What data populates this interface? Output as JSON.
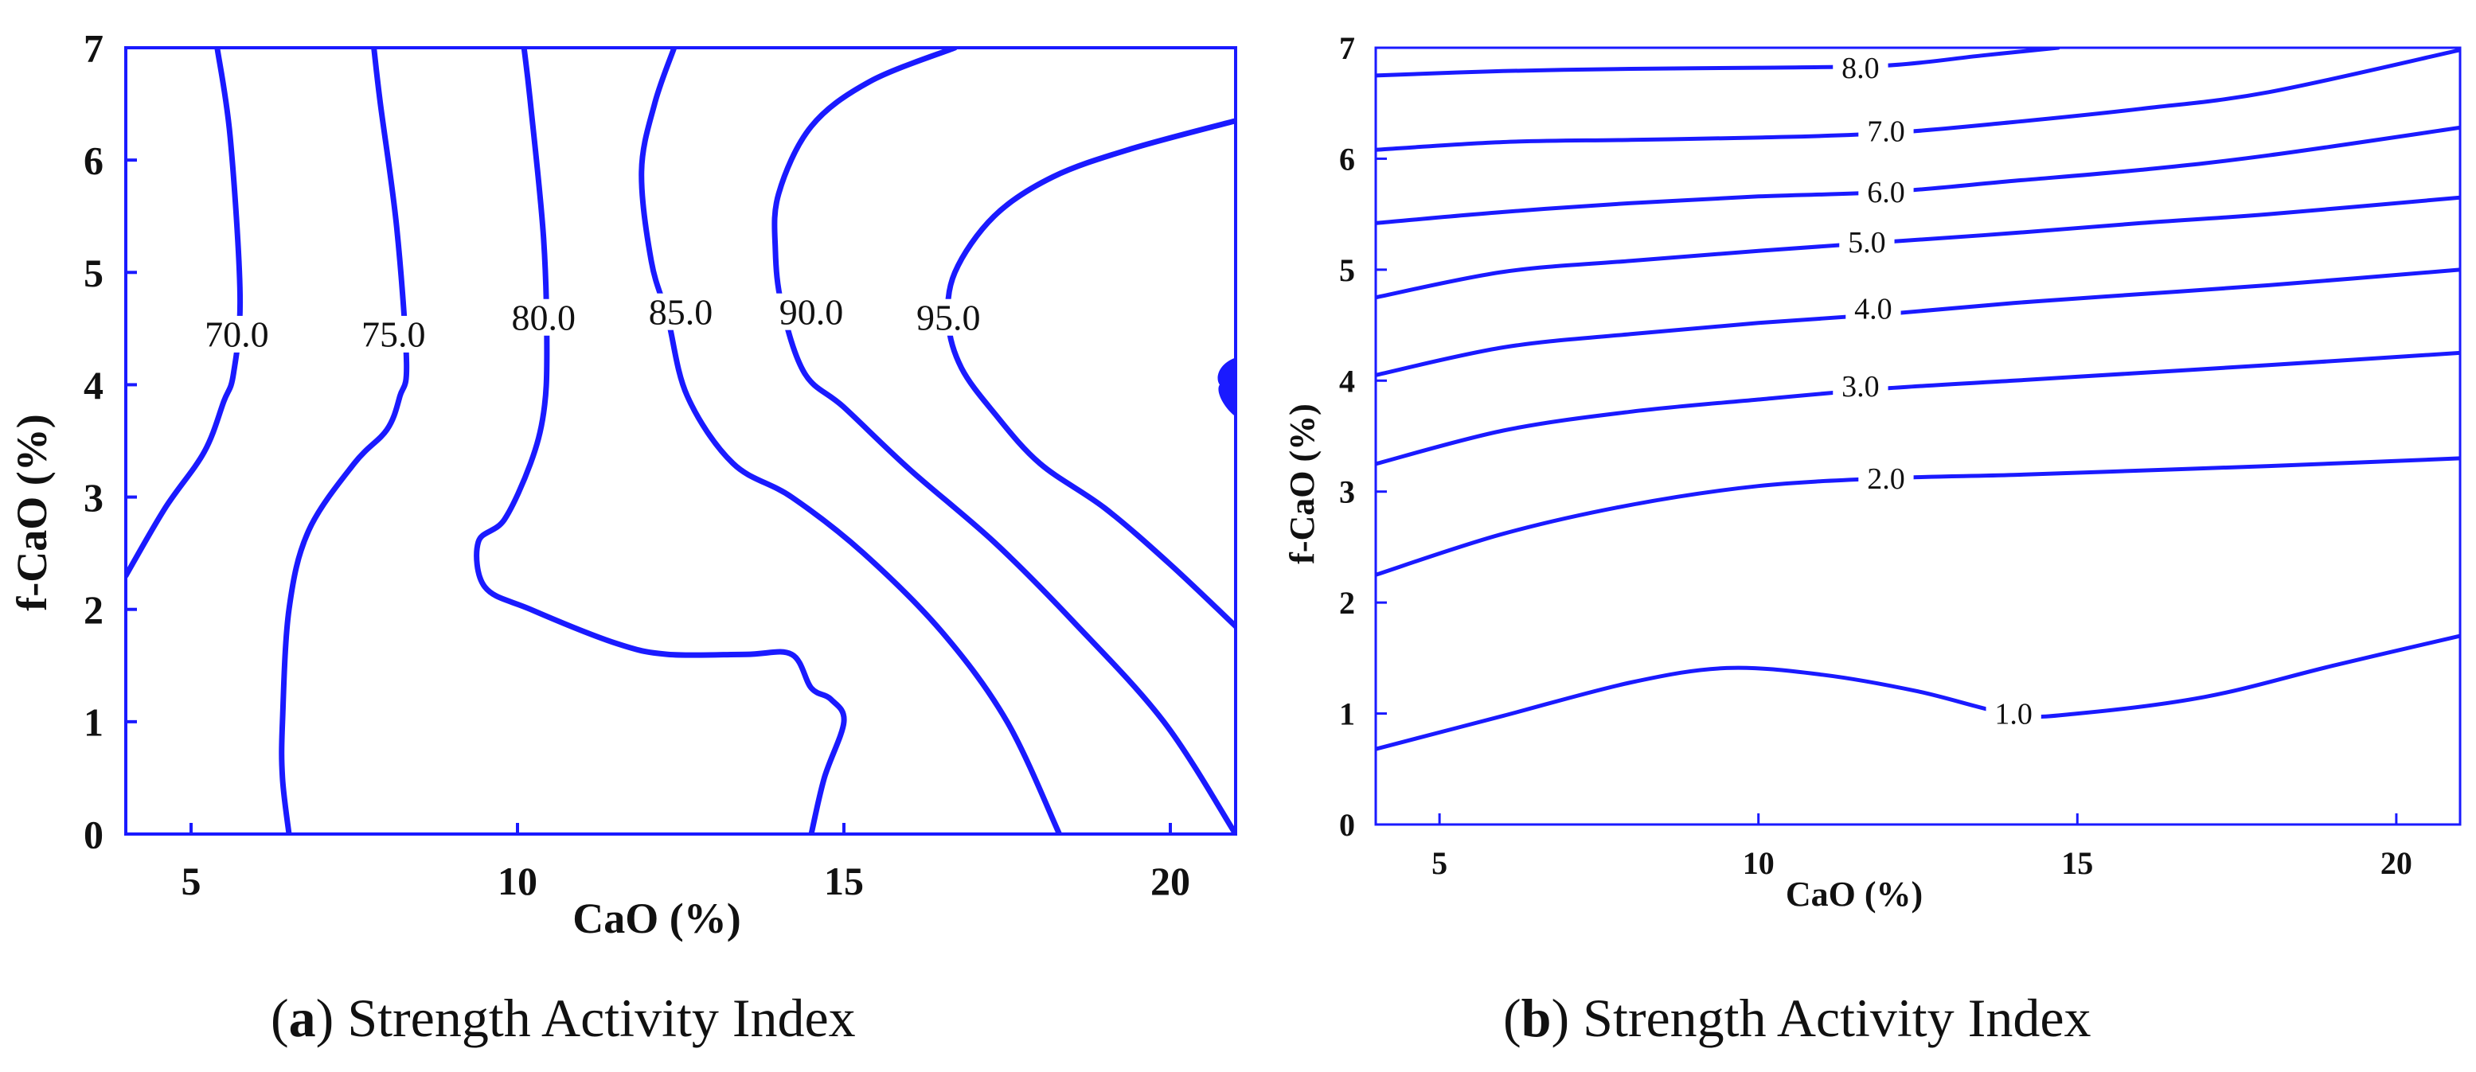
{
  "colors": {
    "line": "#1a1aff",
    "axis": "#1a1aff",
    "text": "#111111"
  },
  "chart_data": [
    {
      "type": "contour",
      "panel": "a",
      "caption_letter": "a",
      "caption_text": "Strength Activity Index",
      "xlabel": "CaO (%)",
      "ylabel": "f-CaO (%)",
      "xlim": [
        4,
        21
      ],
      "ylim": [
        0,
        7
      ],
      "xticks": [
        5,
        10,
        15,
        20
      ],
      "yticks": [
        0,
        1,
        2,
        3,
        4,
        5,
        6,
        7
      ],
      "contours": [
        {
          "label": "70.0",
          "level": 70,
          "label_at": [
            5.7,
            4.45
          ],
          "points": [
            [
              4,
              2.3
            ],
            [
              4.6,
              2.9
            ],
            [
              5.2,
              3.4
            ],
            [
              5.5,
              3.85
            ],
            [
              5.65,
              4.1
            ],
            [
              5.75,
              4.8
            ],
            [
              5.6,
              6.2
            ],
            [
              5.4,
              7
            ]
          ]
        },
        {
          "label": "75.0",
          "level": 75,
          "label_at": [
            8.1,
            4.45
          ],
          "points": [
            [
              6.5,
              0
            ],
            [
              6.4,
              0.5
            ],
            [
              6.4,
              1.0
            ],
            [
              6.5,
              2.0
            ],
            [
              6.8,
              2.7
            ],
            [
              7.5,
              3.3
            ],
            [
              8.0,
              3.6
            ],
            [
              8.2,
              3.9
            ],
            [
              8.3,
              4.2
            ],
            [
              8.15,
              5.4
            ],
            [
              7.9,
              6.5
            ],
            [
              7.8,
              7
            ]
          ]
        },
        {
          "label": "80.0",
          "level": 80,
          "label_at": [
            10.4,
            4.6
          ],
          "points": [
            [
              14.5,
              0
            ],
            [
              14.7,
              0.5
            ],
            [
              15.0,
              1.0
            ],
            [
              14.8,
              1.2
            ],
            [
              14.5,
              1.3
            ],
            [
              14.2,
              1.6
            ],
            [
              13.5,
              1.6
            ],
            [
              12.3,
              1.6
            ],
            [
              11.5,
              1.7
            ],
            [
              10.2,
              2.0
            ],
            [
              9.5,
              2.2
            ],
            [
              9.4,
              2.6
            ],
            [
              9.8,
              2.8
            ],
            [
              10.2,
              3.3
            ],
            [
              10.4,
              3.75
            ],
            [
              10.45,
              4.3
            ],
            [
              10.4,
              5.3
            ],
            [
              10.2,
              6.5
            ],
            [
              10.1,
              7
            ]
          ]
        },
        {
          "label": "85.0",
          "level": 85,
          "label_at": [
            12.5,
            4.65
          ],
          "points": [
            [
              18.3,
              0
            ],
            [
              17.5,
              1.0
            ],
            [
              16.5,
              1.8
            ],
            [
              15.3,
              2.5
            ],
            [
              14.2,
              3.0
            ],
            [
              13.3,
              3.3
            ],
            [
              12.6,
              3.9
            ],
            [
              12.3,
              4.6
            ],
            [
              12.05,
              5.1
            ],
            [
              11.9,
              5.9
            ],
            [
              12.1,
              6.5
            ],
            [
              12.4,
              7
            ]
          ]
        },
        {
          "label": "90.0",
          "level": 90,
          "label_at": [
            14.5,
            4.65
          ],
          "points": [
            [
              21,
              0
            ],
            [
              19.9,
              1.0
            ],
            [
              18.5,
              1.9
            ],
            [
              17.3,
              2.6
            ],
            [
              16.0,
              3.25
            ],
            [
              15.0,
              3.8
            ],
            [
              14.4,
              4.1
            ],
            [
              14.05,
              4.7
            ],
            [
              13.95,
              5.2
            ],
            [
              14.0,
              5.7
            ],
            [
              14.5,
              6.3
            ],
            [
              15.4,
              6.7
            ],
            [
              16.7,
              7
            ]
          ]
        },
        {
          "label": "95.0",
          "level": 95,
          "label_at": [
            16.6,
            4.6
          ],
          "points": [
            [
              21,
              1.85
            ],
            [
              20.0,
              2.4
            ],
            [
              19.0,
              2.9
            ],
            [
              18.0,
              3.3
            ],
            [
              17.3,
              3.75
            ],
            [
              16.8,
              4.15
            ],
            [
              16.6,
              4.55
            ],
            [
              16.7,
              5.0
            ],
            [
              17.3,
              5.5
            ],
            [
              18.2,
              5.85
            ],
            [
              19.4,
              6.1
            ],
            [
              21,
              6.35
            ]
          ]
        }
      ],
      "marker": {
        "x": 21,
        "y": 4.0
      }
    },
    {
      "type": "contour",
      "panel": "b",
      "caption_letter": "b",
      "caption_text": "Strength Activity Index",
      "xlabel": "CaO (%)",
      "ylabel": "f-CaO (%)",
      "xlim": [
        4,
        21
      ],
      "ylim": [
        0,
        7
      ],
      "xticks": [
        5,
        10,
        15,
        20
      ],
      "yticks": [
        0,
        1,
        2,
        3,
        4,
        5,
        6,
        7
      ],
      "contours": [
        {
          "label": "1.0",
          "level": 1,
          "label_at": [
            14.0,
            1.0
          ],
          "points": [
            [
              4,
              0.68
            ],
            [
              6,
              0.98
            ],
            [
              8,
              1.28
            ],
            [
              9.5,
              1.41
            ],
            [
              11,
              1.35
            ],
            [
              12.5,
              1.2
            ],
            [
              14,
              0.99
            ],
            [
              15,
              1.0
            ],
            [
              17,
              1.15
            ],
            [
              19,
              1.43
            ],
            [
              21,
              1.7
            ]
          ]
        },
        {
          "label": "2.0",
          "level": 2,
          "label_at": [
            12.0,
            3.12
          ],
          "points": [
            [
              4,
              2.25
            ],
            [
              6,
              2.62
            ],
            [
              8,
              2.88
            ],
            [
              10,
              3.05
            ],
            [
              12,
              3.12
            ],
            [
              14,
              3.15
            ],
            [
              16,
              3.19
            ],
            [
              18,
              3.23
            ],
            [
              21,
              3.3
            ]
          ]
        },
        {
          "label": "3.0",
          "level": 3,
          "label_at": [
            11.6,
            3.95
          ],
          "points": [
            [
              4,
              3.25
            ],
            [
              6,
              3.55
            ],
            [
              8,
              3.72
            ],
            [
              10,
              3.83
            ],
            [
              12,
              3.93
            ],
            [
              14,
              4.0
            ],
            [
              16,
              4.07
            ],
            [
              18,
              4.14
            ],
            [
              21,
              4.25
            ]
          ]
        },
        {
          "label": "4.0",
          "level": 4,
          "label_at": [
            11.8,
            4.65
          ],
          "points": [
            [
              4,
              4.05
            ],
            [
              6,
              4.3
            ],
            [
              8,
              4.42
            ],
            [
              10,
              4.52
            ],
            [
              12,
              4.6
            ],
            [
              14,
              4.7
            ],
            [
              16,
              4.78
            ],
            [
              18,
              4.86
            ],
            [
              21,
              5.0
            ]
          ]
        },
        {
          "label": "5.0",
          "level": 5,
          "label_at": [
            11.7,
            5.25
          ],
          "points": [
            [
              4,
              4.75
            ],
            [
              6,
              4.98
            ],
            [
              8,
              5.08
            ],
            [
              10,
              5.17
            ],
            [
              12,
              5.25
            ],
            [
              14,
              5.33
            ],
            [
              16,
              5.42
            ],
            [
              18,
              5.5
            ],
            [
              21,
              5.65
            ]
          ]
        },
        {
          "label": "6.0",
          "level": 6,
          "label_at": [
            12.0,
            5.7
          ],
          "points": [
            [
              4,
              5.42
            ],
            [
              6,
              5.52
            ],
            [
              8,
              5.6
            ],
            [
              10,
              5.66
            ],
            [
              12,
              5.7
            ],
            [
              14,
              5.8
            ],
            [
              16,
              5.9
            ],
            [
              18,
              6.03
            ],
            [
              21,
              6.28
            ]
          ]
        },
        {
          "label": "7.0",
          "level": 7,
          "label_at": [
            12.0,
            6.25
          ],
          "points": [
            [
              4,
              6.08
            ],
            [
              6,
              6.15
            ],
            [
              8,
              6.17
            ],
            [
              10,
              6.19
            ],
            [
              12,
              6.23
            ],
            [
              14,
              6.33
            ],
            [
              16,
              6.45
            ],
            [
              18,
              6.6
            ],
            [
              21,
              6.98
            ]
          ]
        },
        {
          "label": "8.0",
          "level": 8,
          "label_at": [
            11.6,
            6.82
          ],
          "points": [
            [
              4,
              6.75
            ],
            [
              6,
              6.79
            ],
            [
              8,
              6.81
            ],
            [
              10,
              6.82
            ],
            [
              12,
              6.84
            ],
            [
              13.5,
              6.93
            ],
            [
              14.7,
              7.0
            ]
          ]
        }
      ]
    }
  ]
}
